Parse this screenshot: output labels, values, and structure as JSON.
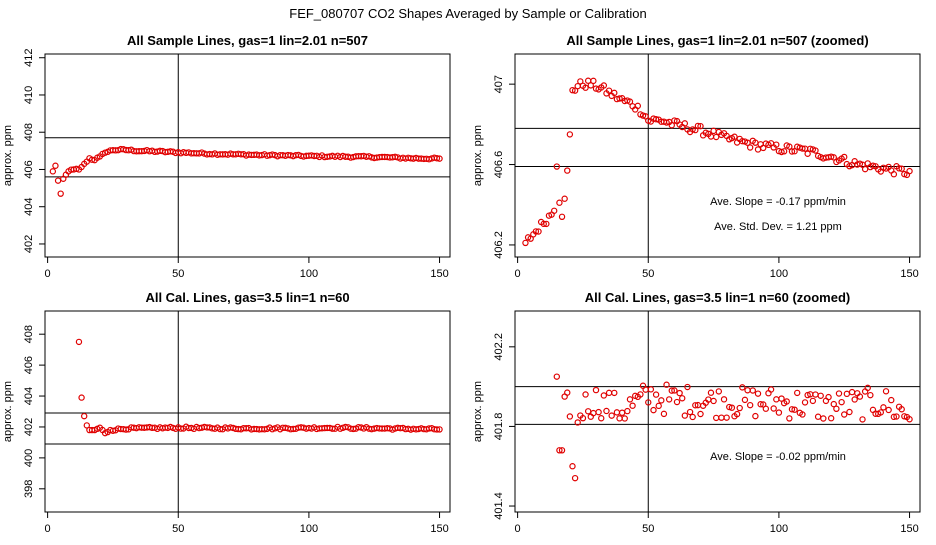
{
  "title": "FEF_080707  CO2 Shapes Averaged by Sample or Calibration",
  "chart_data": [
    {
      "type": "scatter",
      "title": "All Sample Lines, gas=1 lin=2.01 n=507",
      "ylabel": "approx. ppm",
      "xlim": [
        -1,
        154
      ],
      "ylim": [
        401.3,
        412.2
      ],
      "xticks": [
        0,
        50,
        100,
        150
      ],
      "yticks": [
        402,
        404,
        406,
        408,
        410,
        412
      ],
      "hlines": [
        405.6,
        407.7
      ],
      "vline": 50,
      "annotations": [],
      "profile": [
        [
          2,
          405.9
        ],
        [
          3,
          406.2
        ],
        [
          4,
          405.4
        ],
        [
          5,
          404.7
        ],
        [
          6,
          405.5
        ],
        [
          8,
          405.9
        ],
        [
          10,
          406.0
        ],
        [
          12,
          406.0
        ],
        [
          14,
          406.3
        ],
        [
          16,
          406.6
        ],
        [
          18,
          406.5
        ],
        [
          20,
          406.7
        ],
        [
          22,
          406.9
        ],
        [
          25,
          407.05
        ],
        [
          30,
          407.05
        ],
        [
          35,
          407.0
        ],
        [
          40,
          406.98
        ],
        [
          45,
          406.95
        ],
        [
          50,
          406.92
        ],
        [
          60,
          406.86
        ],
        [
          70,
          406.82
        ],
        [
          80,
          406.78
        ],
        [
          90,
          406.75
        ],
        [
          100,
          406.72
        ],
        [
          110,
          406.7
        ],
        [
          120,
          406.68
        ],
        [
          130,
          406.65
        ],
        [
          140,
          406.6
        ],
        [
          150,
          406.58
        ]
      ],
      "noise": 0.05
    },
    {
      "type": "scatter",
      "title": "All Sample Lines, gas=1 lin=2.01 n=507 (zoomed)",
      "ylabel": "approx. ppm",
      "xlim": [
        -1,
        154
      ],
      "ylim": [
        406.14,
        407.15
      ],
      "xticks": [
        0,
        50,
        100,
        150
      ],
      "yticks": [
        406.2,
        406.6,
        407.0
      ],
      "hlines": [
        406.78,
        406.59
      ],
      "vline": 50,
      "annotations": [
        "Ave. Slope =  -0.17  ppm/min",
        "Ave. Std. Dev. =  1.21  ppm"
      ],
      "profile": [
        [
          3,
          406.21
        ],
        [
          14,
          406.37
        ],
        [
          15,
          406.59
        ],
        [
          16,
          406.41
        ],
        [
          17,
          406.34
        ],
        [
          18,
          406.43
        ],
        [
          19,
          406.57
        ],
        [
          20,
          406.75
        ],
        [
          21,
          406.97
        ],
        [
          23,
          406.99
        ],
        [
          25,
          407.0
        ],
        [
          28,
          407.0
        ],
        [
          32,
          406.98
        ],
        [
          36,
          406.95
        ],
        [
          40,
          406.92
        ],
        [
          44,
          406.9
        ],
        [
          48,
          406.86
        ],
        [
          50,
          406.82
        ],
        [
          55,
          406.82
        ],
        [
          60,
          406.8
        ],
        [
          70,
          406.77
        ],
        [
          80,
          406.73
        ],
        [
          90,
          406.7
        ],
        [
          100,
          406.68
        ],
        [
          110,
          406.67
        ],
        [
          120,
          406.64
        ],
        [
          125,
          406.62
        ],
        [
          130,
          406.6
        ],
        [
          140,
          406.58
        ],
        [
          150,
          406.56
        ]
      ],
      "noise": 0.022
    },
    {
      "type": "scatter",
      "title": "All Cal. Lines, gas=3.5 lin=1 n=60",
      "ylabel": "approx. ppm",
      "xlim": [
        -1,
        154
      ],
      "ylim": [
        396.5,
        409.5
      ],
      "xticks": [
        0,
        50,
        100,
        150
      ],
      "yticks": [
        398,
        400,
        402,
        404,
        406,
        408
      ],
      "hlines": [
        402.9,
        400.9
      ],
      "vline": 50,
      "annotations": [],
      "profile": [
        [
          12,
          407.5
        ],
        [
          13,
          403.9
        ],
        [
          14,
          402.7
        ],
        [
          15,
          402.1
        ],
        [
          16,
          401.8
        ],
        [
          18,
          401.8
        ],
        [
          20,
          401.95
        ],
        [
          22,
          401.6
        ],
        [
          24,
          401.8
        ],
        [
          30,
          401.9
        ],
        [
          50,
          401.95
        ],
        [
          80,
          401.9
        ],
        [
          110,
          401.95
        ],
        [
          130,
          401.9
        ],
        [
          150,
          401.85
        ]
      ],
      "noise": 0.07
    },
    {
      "type": "scatter",
      "title": "All Cal. Lines, gas=3.5 lin=1 n=60 (zoomed)",
      "ylabel": "approx. ppm",
      "xlim": [
        -1,
        154
      ],
      "ylim": [
        401.37,
        402.38
      ],
      "xticks": [
        0,
        50,
        100,
        150
      ],
      "yticks": [
        401.4,
        401.8,
        402.2
      ],
      "hlines": [
        402.0,
        401.81
      ],
      "vline": 50,
      "annotations": [
        "Ave. Slope =  -0.02  ppm/min"
      ],
      "profile": [
        [
          15,
          402.05
        ],
        [
          16,
          401.68
        ],
        [
          17,
          401.68
        ],
        [
          18,
          401.95
        ],
        [
          19,
          401.97
        ],
        [
          20,
          401.85
        ],
        [
          21,
          401.6
        ],
        [
          22,
          401.54
        ],
        [
          23,
          401.82
        ],
        [
          25,
          401.9
        ],
        [
          30,
          401.93
        ],
        [
          40,
          401.88
        ],
        [
          50,
          401.95
        ],
        [
          60,
          401.93
        ],
        [
          80,
          401.92
        ],
        [
          100,
          401.92
        ],
        [
          120,
          401.9
        ],
        [
          140,
          401.92
        ],
        [
          150,
          401.85
        ]
      ],
      "noise": 0.08
    }
  ]
}
